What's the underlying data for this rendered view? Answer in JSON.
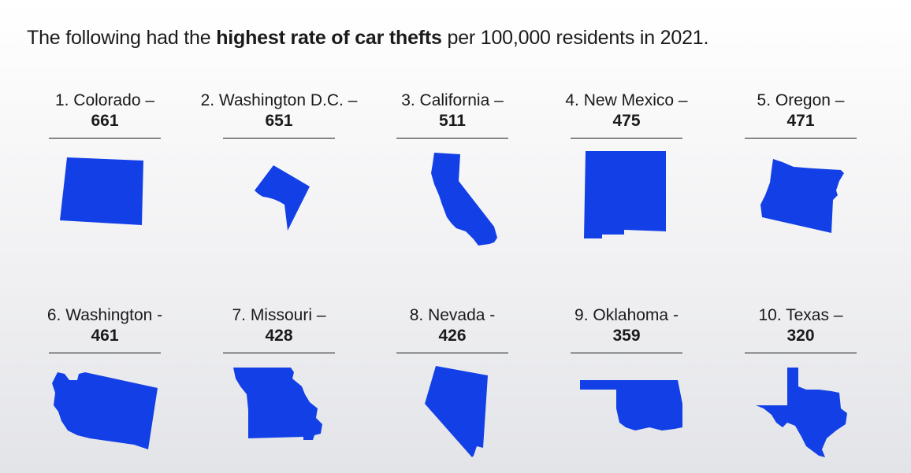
{
  "headline": {
    "prefix": "The following had the ",
    "bold": "highest rate of car thefts",
    "suffix": " per 100,000 residents in 2021."
  },
  "accent_color": "#1340e6",
  "states": [
    {
      "name": "1. Colorado –",
      "value": "661",
      "icon": "colorado-icon"
    },
    {
      "name": "2. Washington D.C. –",
      "value": "651",
      "icon": "washington-dc-icon"
    },
    {
      "name": "3. California –",
      "value": "511",
      "icon": "california-icon"
    },
    {
      "name": "4. New Mexico –",
      "value": "475",
      "icon": "new-mexico-icon"
    },
    {
      "name": "5. Oregon –",
      "value": "471",
      "icon": "oregon-icon"
    },
    {
      "name": "6. Washington -",
      "value": "461",
      "icon": "washington-icon"
    },
    {
      "name": "7. Missouri –",
      "value": "428",
      "icon": "missouri-icon"
    },
    {
      "name": "8. Nevada -",
      "value": "426",
      "icon": "nevada-icon"
    },
    {
      "name": "9. Oklahoma -",
      "value": "359",
      "icon": "oklahoma-icon"
    },
    {
      "name": "10. Texas –",
      "value": "320",
      "icon": "texas-icon"
    }
  ]
}
